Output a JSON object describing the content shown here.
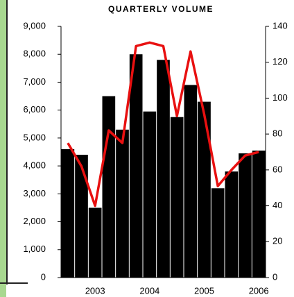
{
  "chart_data": {
    "type": "bar",
    "title": "QUARTERLY VOLUME",
    "categories": [
      null,
      null,
      "2003",
      null,
      null,
      null,
      "2004",
      null,
      null,
      null,
      "2005",
      null,
      null,
      null,
      "2006"
    ],
    "series": [
      {
        "type": "bar",
        "color": "#000000",
        "values": [
          4600,
          4400,
          2500,
          6500,
          5300,
          8000,
          5950,
          7800,
          5750,
          6900,
          6300,
          3200,
          3800,
          4450,
          4550
        ]
      },
      {
        "type": "line",
        "axis": "y2",
        "color": "#e81010",
        "values": [
          75,
          62,
          40,
          82,
          75,
          129,
          131,
          129,
          90,
          126,
          91,
          51,
          60,
          68,
          70
        ]
      }
    ],
    "ylim": [
      0,
      9000
    ],
    "yticks": [
      0,
      {
        "value": 1000,
        "label": "1,000"
      },
      {
        "value": 2000,
        "label": "2,000"
      },
      {
        "value": 3000,
        "label": "3,000"
      },
      {
        "value": 4000,
        "label": "4,000"
      },
      {
        "value": 5000,
        "label": "5,000"
      },
      {
        "value": 6000,
        "label": "6,000"
      },
      {
        "value": 7000,
        "label": "7,000"
      },
      {
        "value": 8000,
        "label": "8,000"
      },
      {
        "value": 9000,
        "label": "9,000"
      }
    ],
    "y2lim": [
      0,
      140
    ],
    "y2ticks": [
      0,
      20,
      40,
      60,
      80,
      100,
      120,
      140
    ],
    "grid": false
  }
}
